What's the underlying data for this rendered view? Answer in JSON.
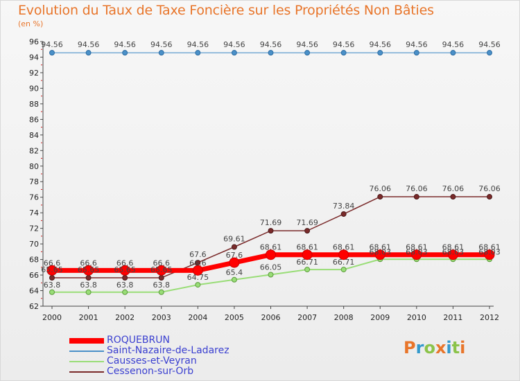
{
  "title": "Evolution du Taux de Taxe Foncière sur les Propriétés Non Bâties",
  "unit_label": "(en %)",
  "logo_text": "Proxiti",
  "chart_data": {
    "type": "line",
    "title": "Evolution du Taux de Taxe Foncière sur les Propriétés Non Bâties",
    "ylabel": "(en %)",
    "xlabel": "",
    "x": [
      "2000",
      "2001",
      "2002",
      "2003",
      "2004",
      "2005",
      "2006",
      "2007",
      "2008",
      "2009",
      "2010",
      "2011",
      "2012"
    ],
    "ylim": [
      62,
      96
    ],
    "yticks": [
      62,
      64,
      66,
      68,
      70,
      72,
      74,
      76,
      78,
      80,
      82,
      84,
      86,
      88,
      90,
      92,
      94,
      96
    ],
    "grid": false,
    "legend_position": "bottom-left",
    "series": [
      {
        "name": "ROQUEBRUN",
        "color": "#ff0000",
        "values": [
          66.6,
          66.6,
          66.6,
          66.6,
          66.6,
          67.6,
          68.61,
          68.61,
          68.61,
          68.61,
          68.61,
          68.61,
          68.61
        ],
        "labels": [
          "66.6",
          "66.6",
          "66.6",
          "66.6",
          "66.6",
          "67.6",
          "68.61",
          "68.61",
          "68.61",
          "68.61",
          "68.61",
          "68.61",
          "68.61"
        ]
      },
      {
        "name": "Saint-Nazaire-de-Ladarez",
        "color": "#4a90c8",
        "values": [
          94.56,
          94.56,
          94.56,
          94.56,
          94.56,
          94.56,
          94.56,
          94.56,
          94.56,
          94.56,
          94.56,
          94.56,
          94.56
        ],
        "labels": [
          "94.56",
          "94.56",
          "94.56",
          "94.56",
          "94.56",
          "94.56",
          "94.56",
          "94.56",
          "94.56",
          "94.56",
          "94.56",
          "94.56",
          "94.56"
        ]
      },
      {
        "name": "Causses-et-Veyran",
        "color": "#99dd77",
        "values": [
          63.8,
          63.8,
          63.8,
          63.8,
          64.75,
          65.4,
          66.05,
          66.71,
          66.71,
          68.03,
          68.03,
          68.03,
          68.03
        ],
        "labels": [
          "63.8",
          "63.8",
          "63.8",
          "63.8",
          "64.75",
          "65.4",
          "66.05",
          "66.71",
          "66.71",
          "68.03",
          "68.03",
          "68.03",
          "68.03"
        ]
      },
      {
        "name": "Cessenon-sur-Orb",
        "color": "#7a2a2a",
        "values": [
          65.65,
          65.65,
          65.65,
          65.65,
          67.6,
          69.61,
          71.69,
          71.69,
          73.84,
          76.06,
          76.06,
          76.06,
          76.06
        ],
        "labels": [
          "65.65",
          "65.65",
          "65.65",
          "65.65",
          "67.6",
          "69.61",
          "71.69",
          "71.69",
          "73.84",
          "76.06",
          "76.06",
          "76.06",
          "76.06"
        ]
      }
    ]
  }
}
